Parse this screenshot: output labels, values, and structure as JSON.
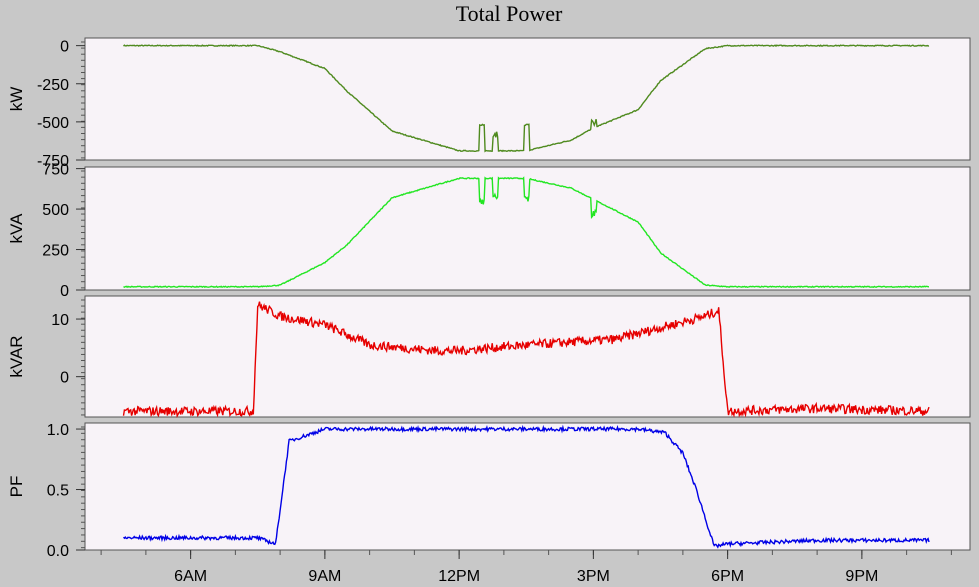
{
  "title": "Total Power",
  "chart_data": [
    {
      "type": "line",
      "ylabel": "kW",
      "color": "#4f8a1f",
      "ylim": [
        -750,
        50
      ],
      "yticks": [
        "0",
        "-250",
        "-500",
        "-750"
      ],
      "ytick_values": [
        0,
        -250,
        -500,
        -750
      ],
      "x_hours": [
        4.5,
        7.5,
        8.0,
        9.0,
        9.5,
        10.5,
        12.0,
        13.5,
        14.5,
        15.0,
        16.0,
        16.5,
        17.5,
        18.0,
        20.0,
        22.5
      ],
      "values": [
        0,
        0,
        -40,
        -150,
        -300,
        -560,
        -690,
        -690,
        -620,
        -540,
        -420,
        -230,
        -20,
        0,
        0,
        0
      ],
      "spikes": [
        [
          12.5,
          -530
        ],
        [
          12.8,
          -580
        ],
        [
          13.5,
          -530
        ],
        [
          15.0,
          -500
        ]
      ]
    },
    {
      "type": "line",
      "ylabel": "kVA",
      "color": "#22e622",
      "ylim": [
        0,
        760
      ],
      "yticks": [
        "750",
        "500",
        "250",
        "0"
      ],
      "ytick_values": [
        750,
        500,
        250,
        0
      ],
      "x_hours": [
        4.5,
        7.5,
        8.0,
        9.0,
        9.5,
        10.5,
        12.0,
        13.5,
        14.5,
        15.0,
        16.0,
        16.5,
        17.5,
        18.0,
        20.0,
        22.5
      ],
      "values": [
        20,
        20,
        30,
        170,
        280,
        570,
        690,
        690,
        630,
        560,
        420,
        230,
        30,
        20,
        20,
        20
      ],
      "spikes": [
        [
          12.5,
          550
        ],
        [
          12.8,
          580
        ],
        [
          13.5,
          560
        ],
        [
          15.0,
          470
        ]
      ]
    },
    {
      "type": "line",
      "ylabel": "kVAR",
      "color": "#e60000",
      "ylim": [
        -7,
        14
      ],
      "yticks": [
        "10",
        "0"
      ],
      "ytick_values": [
        10,
        0
      ],
      "x_hours": [
        4.5,
        7.4,
        7.5,
        8.0,
        9.0,
        10.0,
        11.5,
        12.0,
        13.0,
        14.5,
        15.5,
        16.5,
        17.5,
        17.8,
        18.0,
        20.0,
        22.5
      ],
      "values": [
        -6,
        -6,
        12.5,
        10.5,
        9,
        5.5,
        4.5,
        4.5,
        5.2,
        6,
        6.5,
        8.5,
        10.5,
        11.5,
        -6,
        -5.5,
        -6
      ]
    },
    {
      "type": "line",
      "ylabel": "PF",
      "color": "#0000e6",
      "ylim": [
        0,
        1.05
      ],
      "yticks": [
        "1.0",
        "0.5",
        "0.0"
      ],
      "ytick_values": [
        1.0,
        0.5,
        0.0
      ],
      "x_hours": [
        4.5,
        7.5,
        7.9,
        8.2,
        9.0,
        12.0,
        16.0,
        16.6,
        17.0,
        17.3,
        17.7,
        18.0,
        20.0,
        22.5
      ],
      "values": [
        0.1,
        0.1,
        0.05,
        0.9,
        1.0,
        1.0,
        1.0,
        0.97,
        0.8,
        0.5,
        0.03,
        0.05,
        0.08,
        0.08
      ]
    }
  ],
  "x_axis": {
    "ticks": [
      "6AM",
      "9AM",
      "12PM",
      "3PM",
      "6PM",
      "9PM"
    ],
    "tick_hours": [
      6,
      9,
      12,
      15,
      18,
      21
    ]
  }
}
